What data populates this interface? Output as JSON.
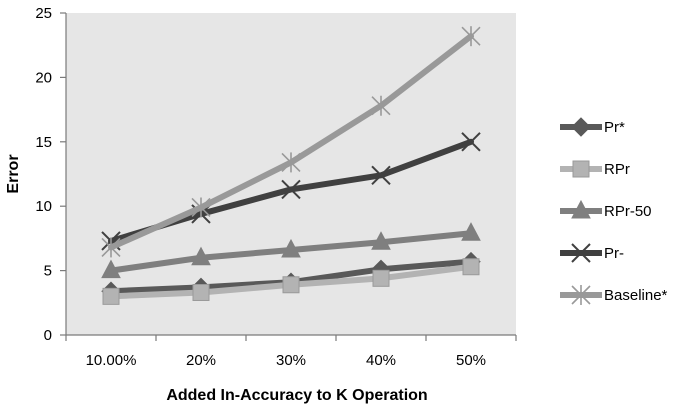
{
  "chart_data": {
    "type": "line",
    "title": "",
    "xlabel": "Added In-Accuracy to K Operation",
    "ylabel": "Error",
    "categories": [
      "10.00%",
      "20%",
      "30%",
      "40%",
      "50%"
    ],
    "ylim": [
      0,
      25
    ],
    "yticks": [
      0,
      5,
      10,
      15,
      20,
      25
    ],
    "grid": false,
    "legend_position": "right",
    "series": [
      {
        "name": "Pr*",
        "values": [
          3.4,
          3.7,
          4.1,
          5.1,
          5.7
        ],
        "color": "#595959",
        "marker": "diamond"
      },
      {
        "name": "RPr",
        "values": [
          3.0,
          3.3,
          3.9,
          4.4,
          5.3
        ],
        "color": "#b3b3b3",
        "marker": "square"
      },
      {
        "name": "RPr-50",
        "values": [
          5.0,
          6.0,
          6.6,
          7.2,
          7.9
        ],
        "color": "#7f7f7f",
        "marker": "triangle"
      },
      {
        "name": "Pr-",
        "values": [
          7.3,
          9.4,
          11.3,
          12.4,
          15.0
        ],
        "color": "#404040",
        "marker": "x"
      },
      {
        "name": "Baseline*",
        "values": [
          6.8,
          9.9,
          13.4,
          17.8,
          23.2
        ],
        "color": "#999999",
        "marker": "star"
      }
    ],
    "plot_background": "#e6e6e6"
  }
}
